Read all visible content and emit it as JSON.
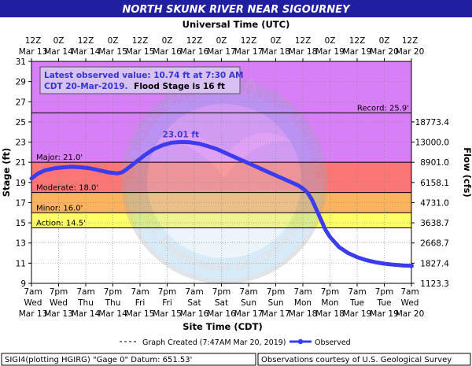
{
  "colors": {
    "title_bar": "#1f1f9f",
    "bg_record": "#d87ef6",
    "bg_major": "#fe7575",
    "bg_moderate": "#fcb35e",
    "bg_minor": "#ffff66",
    "bg_action": "#ffffff",
    "series": "#3b3bf0",
    "peak_label": "#3b3bd6",
    "info_text": "#3434d4"
  },
  "header": {
    "title": "NORTH SKUNK RIVER NEAR SIGOURNEY",
    "top_axis_title": "Universal Time (UTC)"
  },
  "info_box": {
    "line1": "Latest observed value: 10.74 ft at 7:30 AM",
    "line2a": "CDT 20-Mar-2019.",
    "line2b": "Flood Stage is 16 ft"
  },
  "legend": {
    "graph_created": "Graph Created (7:47AM Mar 20, 2019)",
    "observed": "Observed"
  },
  "footer": {
    "left": "SIGI4(plotting HGIRG) \"Gage 0\" Datum: 651.53'",
    "right": "Observations courtesy of U.S. Geological Survey"
  },
  "watermark": {
    "outer_text": "NATIONAL OCEANIC AND ATMOSPHERIC ADMINISTRATION",
    "inner_text": "NOAA",
    "bottom_text": "U.S. DEPARTMENT OF COMMERCE"
  },
  "chart_data": {
    "type": "line",
    "title": "NORTH SKUNK RIVER NEAR SIGOURNEY",
    "xlabel": "Site Time (CDT)",
    "ylabel": "Stage (ft)",
    "y2label": "Flow (cfs)",
    "top_xlabel": "Universal Time (UTC)",
    "ylim": [
      9,
      31
    ],
    "xlim": [
      0,
      168
    ],
    "x_units": "hours since Mar 13 7am CDT",
    "y_ticks": [
      9,
      11,
      13,
      15,
      17,
      19,
      21,
      23,
      25,
      27,
      29,
      31
    ],
    "flow_ticks": [
      {
        "stage": 9,
        "label": "1123.3"
      },
      {
        "stage": 11,
        "label": "1827.4"
      },
      {
        "stage": 13,
        "label": "2668.7"
      },
      {
        "stage": 15,
        "label": "3638.7"
      },
      {
        "stage": 17,
        "label": "4731.0"
      },
      {
        "stage": 19,
        "label": "6158.1"
      },
      {
        "stage": 21,
        "label": "8901.0"
      },
      {
        "stage": 23,
        "label": "13000.0"
      },
      {
        "stage": 25,
        "label": "18773.4"
      }
    ],
    "bottom_ticks": [
      {
        "time": "7am",
        "day": "Wed",
        "date": "Mar 13"
      },
      {
        "time": "7pm",
        "day": "Wed",
        "date": "Mar 13"
      },
      {
        "time": "7am",
        "day": "Thu",
        "date": "Mar 14"
      },
      {
        "time": "7pm",
        "day": "Thu",
        "date": "Mar 14"
      },
      {
        "time": "7am",
        "day": "Fri",
        "date": "Mar 15"
      },
      {
        "time": "7pm",
        "day": "Fri",
        "date": "Mar 15"
      },
      {
        "time": "7am",
        "day": "Sat",
        "date": "Mar 16"
      },
      {
        "time": "7pm",
        "day": "Sat",
        "date": "Mar 16"
      },
      {
        "time": "7am",
        "day": "Sun",
        "date": "Mar 17"
      },
      {
        "time": "7pm",
        "day": "Sun",
        "date": "Mar 17"
      },
      {
        "time": "7am",
        "day": "Mon",
        "date": "Mar 18"
      },
      {
        "time": "7pm",
        "day": "Mon",
        "date": "Mar 18"
      },
      {
        "time": "7am",
        "day": "Tue",
        "date": "Mar 19"
      },
      {
        "time": "7pm",
        "day": "Tue",
        "date": "Mar 19"
      },
      {
        "time": "7am",
        "day": "Wed",
        "date": "Mar 20"
      }
    ],
    "top_ticks": [
      {
        "time": "12Z",
        "date": "Mar 13"
      },
      {
        "time": "0Z",
        "date": "Mar 14"
      },
      {
        "time": "12Z",
        "date": "Mar 14"
      },
      {
        "time": "0Z",
        "date": "Mar 15"
      },
      {
        "time": "12Z",
        "date": "Mar 15"
      },
      {
        "time": "0Z",
        "date": "Mar 16"
      },
      {
        "time": "12Z",
        "date": "Mar 16"
      },
      {
        "time": "0Z",
        "date": "Mar 17"
      },
      {
        "time": "12Z",
        "date": "Mar 17"
      },
      {
        "time": "0Z",
        "date": "Mar 18"
      },
      {
        "time": "12Z",
        "date": "Mar 18"
      },
      {
        "time": "0Z",
        "date": "Mar 19"
      },
      {
        "time": "12Z",
        "date": "Mar 19"
      },
      {
        "time": "0Z",
        "date": "Mar 20"
      },
      {
        "time": "12Z",
        "date": "Mar 20"
      }
    ],
    "thresholds": [
      {
        "name": "Record",
        "label": "Record: 25.9'",
        "value": 25.9
      },
      {
        "name": "Major",
        "label": "Major: 21.0'",
        "value": 21.0
      },
      {
        "name": "Moderate",
        "label": "Moderate: 18.0'",
        "value": 18.0
      },
      {
        "name": "Minor",
        "label": "Minor: 16.0'",
        "value": 16.0
      },
      {
        "name": "Action",
        "label": "Action: 14.5'",
        "value": 14.5
      }
    ],
    "peak": {
      "label": "23.01 ft",
      "x": 66,
      "y": 23.01
    },
    "series": [
      {
        "name": "Observed",
        "points": [
          [
            0,
            19.4
          ],
          [
            3,
            19.9
          ],
          [
            6,
            20.2
          ],
          [
            10,
            20.4
          ],
          [
            14,
            20.5
          ],
          [
            18,
            20.55
          ],
          [
            22,
            20.5
          ],
          [
            26,
            20.4
          ],
          [
            30,
            20.2
          ],
          [
            34,
            20.0
          ],
          [
            38,
            19.9
          ],
          [
            40,
            20.0
          ],
          [
            42,
            20.3
          ],
          [
            46,
            21.0
          ],
          [
            50,
            21.7
          ],
          [
            54,
            22.3
          ],
          [
            58,
            22.7
          ],
          [
            62,
            22.95
          ],
          [
            66,
            23.01
          ],
          [
            70,
            22.98
          ],
          [
            74,
            22.85
          ],
          [
            78,
            22.6
          ],
          [
            82,
            22.3
          ],
          [
            86,
            21.9
          ],
          [
            90,
            21.5
          ],
          [
            94,
            21.1
          ],
          [
            98,
            20.7
          ],
          [
            102,
            20.3
          ],
          [
            106,
            19.9
          ],
          [
            110,
            19.5
          ],
          [
            114,
            19.1
          ],
          [
            118,
            18.7
          ],
          [
            120,
            18.4
          ],
          [
            122,
            18.0
          ],
          [
            124,
            17.3
          ],
          [
            126,
            16.3
          ],
          [
            128,
            15.3
          ],
          [
            130,
            14.3
          ],
          [
            132,
            13.6
          ],
          [
            136,
            12.6
          ],
          [
            140,
            12.0
          ],
          [
            144,
            11.6
          ],
          [
            148,
            11.3
          ],
          [
            152,
            11.1
          ],
          [
            156,
            10.95
          ],
          [
            160,
            10.85
          ],
          [
            164,
            10.78
          ],
          [
            168,
            10.74
          ]
        ]
      }
    ]
  }
}
